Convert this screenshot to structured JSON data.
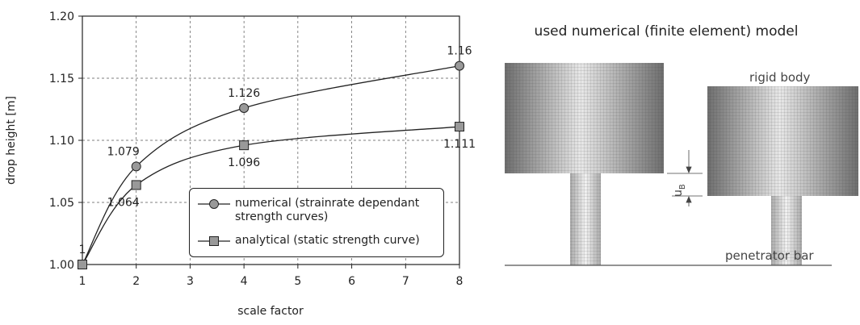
{
  "chart_data": {
    "type": "line",
    "xlabel": "scale factor",
    "ylabel": "drop height [m]",
    "x": [
      1,
      2,
      4,
      8
    ],
    "series": [
      {
        "name": "numerical (strainrate dependant strength curves)",
        "color": "#999999",
        "marker": "circle",
        "values": [
          1,
          1.079,
          1.126,
          1.16
        ]
      },
      {
        "name": "analytical (static strength curve)",
        "color": "#999999",
        "marker": "square",
        "values": [
          1,
          1.064,
          1.096,
          1.111
        ]
      }
    ],
    "xlim": [
      1,
      8
    ],
    "xticks": [
      1,
      2,
      3,
      4,
      5,
      6,
      7,
      8
    ],
    "ylim": [
      1,
      1.2
    ],
    "yticks": [
      {
        "value": 1,
        "label": "1.00"
      },
      1.05,
      {
        "value": 1.1,
        "label": "1.10"
      },
      1.15,
      {
        "value": 1.2,
        "label": "1.20"
      }
    ],
    "grid": true
  },
  "diagram": {
    "title": "used numerical (finite element) model",
    "rigid_body": "rigid body",
    "penetrator_bar": "penetrator bar",
    "displacement": "u",
    "displacement_sub": "B"
  }
}
